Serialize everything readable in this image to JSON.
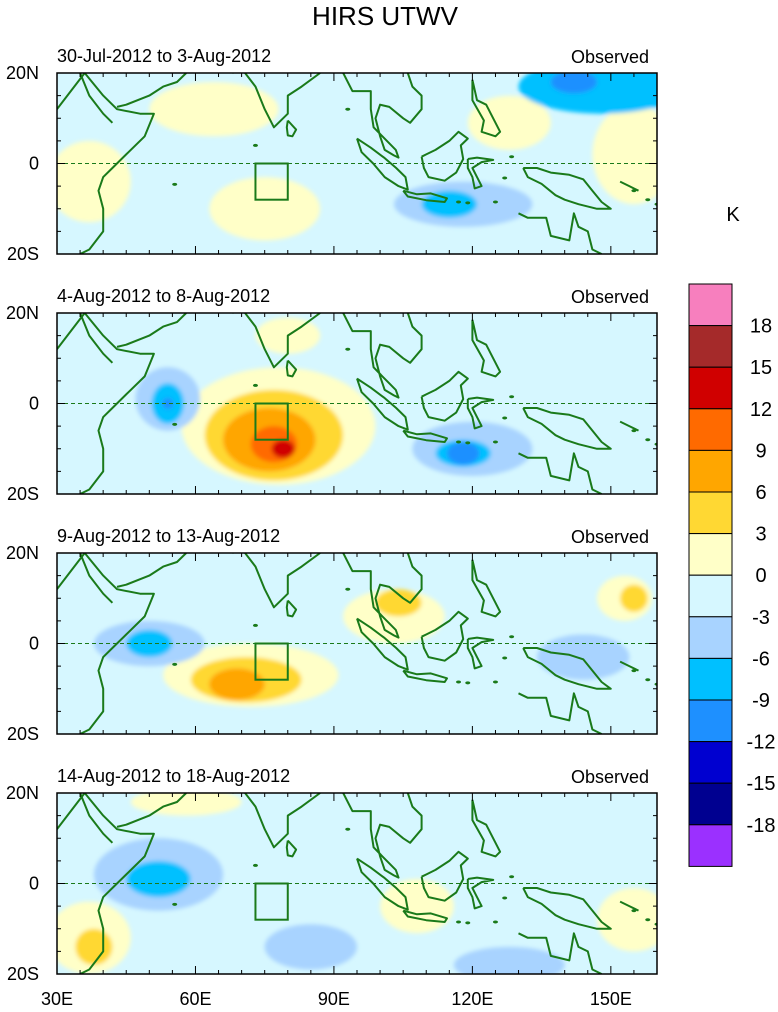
{
  "chart_data": {
    "type": "heatmap",
    "title": "HIRS UTWV",
    "units": "K",
    "x_ticks": [
      "30E",
      "60E",
      "90E",
      "120E",
      "150E"
    ],
    "x_tick_values": [
      30,
      60,
      90,
      120,
      150
    ],
    "xlim": [
      30,
      160
    ],
    "y_ticks": [
      "20N",
      "0",
      "20S"
    ],
    "y_tick_values": [
      20,
      0,
      -20
    ],
    "ylim": [
      -20,
      20
    ],
    "colorbar": {
      "labels": [
        "18",
        "15",
        "12",
        "9",
        "6",
        "3",
        "0",
        "-3",
        "-6",
        "-9",
        "-12",
        "-15",
        "-18"
      ],
      "colors": [
        "#f77fbe",
        "#a52a2a",
        "#d00000",
        "#ff6a00",
        "#ffa600",
        "#ffd833",
        "#ffffc8",
        "#d6f7ff",
        "#a8d3ff",
        "#00c0ff",
        "#1e90ff",
        "#0000d0",
        "#000090",
        "#9b30ff"
      ]
    },
    "box_region": {
      "lon": [
        73,
        80
      ],
      "lat": [
        -8,
        0
      ]
    },
    "panels": [
      {
        "period": "30-Jul-2012 to 3-Aug-2012",
        "label": "Observed",
        "features": [
          {
            "lon": 37,
            "lat": -4,
            "rx": 9,
            "ry": 9,
            "value": 3
          },
          {
            "lon": 75,
            "lat": -10,
            "rx": 12,
            "ry": 7,
            "value": 3
          },
          {
            "lon": 64,
            "lat": 12,
            "rx": 14,
            "ry": 6,
            "value": 3
          },
          {
            "lon": 155,
            "lat": 2,
            "rx": 9,
            "ry": 11,
            "value": 3
          },
          {
            "lon": 128,
            "lat": 9,
            "rx": 9,
            "ry": 6,
            "value": 3
          },
          {
            "lon": 118,
            "lat": -9,
            "rx": 15,
            "ry": 5,
            "value": -3
          },
          {
            "lon": 148,
            "lat": 17,
            "rx": 18,
            "ry": 6,
            "value": -6
          },
          {
            "lon": 142,
            "lat": 18,
            "rx": 5,
            "ry": 2.5,
            "value": -9
          },
          {
            "lon": 115,
            "lat": -9,
            "rx": 6,
            "ry": 3,
            "value": -6
          }
        ]
      },
      {
        "period": "4-Aug-2012 to 8-Aug-2012",
        "label": "Observed",
        "features": [
          {
            "lon": 78,
            "lat": -5,
            "rx": 21,
            "ry": 13,
            "value": 3
          },
          {
            "lon": 77,
            "lat": -7,
            "rx": 15,
            "ry": 10,
            "value": 6
          },
          {
            "lon": 76,
            "lat": -8,
            "rx": 10,
            "ry": 7,
            "value": 9
          },
          {
            "lon": 77,
            "lat": -9,
            "rx": 5,
            "ry": 4,
            "value": 12
          },
          {
            "lon": 79,
            "lat": -10,
            "rx": 2.5,
            "ry": 2,
            "value": 15
          },
          {
            "lon": 80,
            "lat": 15,
            "rx": 7,
            "ry": 4,
            "value": 3
          },
          {
            "lon": 54,
            "lat": 1,
            "rx": 7,
            "ry": 7,
            "value": -3
          },
          {
            "lon": 54,
            "lat": 0,
            "rx": 3.5,
            "ry": 4.5,
            "value": -6
          },
          {
            "lon": 54,
            "lat": 0,
            "rx": 1.2,
            "ry": 1.2,
            "value": -9
          },
          {
            "lon": 120,
            "lat": -10,
            "rx": 13,
            "ry": 6,
            "value": -3
          },
          {
            "lon": 118,
            "lat": -11,
            "rx": 6,
            "ry": 3,
            "value": -6
          },
          {
            "lon": 118,
            "lat": -11,
            "rx": 3.5,
            "ry": 2.5,
            "value": -9
          }
        ]
      },
      {
        "period": "9-Aug-2012 to 13-Aug-2012",
        "label": "Observed",
        "features": [
          {
            "lon": 72,
            "lat": -7,
            "rx": 19,
            "ry": 7,
            "value": 3
          },
          {
            "lon": 71,
            "lat": -8,
            "rx": 12,
            "ry": 5,
            "value": 6
          },
          {
            "lon": 69,
            "lat": -9,
            "rx": 6,
            "ry": 3.5,
            "value": 9
          },
          {
            "lon": 103,
            "lat": 6,
            "rx": 11,
            "ry": 6,
            "value": 3
          },
          {
            "lon": 104,
            "lat": 9,
            "rx": 5,
            "ry": 3,
            "value": 6
          },
          {
            "lon": 153,
            "lat": 10,
            "rx": 6,
            "ry": 5,
            "value": 3
          },
          {
            "lon": 155,
            "lat": 10,
            "rx": 3,
            "ry": 3,
            "value": 6
          },
          {
            "lon": 50,
            "lat": 0,
            "rx": 12,
            "ry": 5,
            "value": -3
          },
          {
            "lon": 50,
            "lat": 0,
            "rx": 5,
            "ry": 3,
            "value": -6
          },
          {
            "lon": 144,
            "lat": -3,
            "rx": 10,
            "ry": 5,
            "value": -3
          }
        ]
      },
      {
        "period": "14-Aug-2012 to 18-Aug-2012",
        "label": "Observed",
        "features": [
          {
            "lon": 52,
            "lat": 2,
            "rx": 14,
            "ry": 8,
            "value": -3
          },
          {
            "lon": 52,
            "lat": 1,
            "rx": 7,
            "ry": 4,
            "value": -6
          },
          {
            "lon": 37,
            "lat": -12,
            "rx": 9,
            "ry": 8,
            "value": 3
          },
          {
            "lon": 38,
            "lat": -14,
            "rx": 4,
            "ry": 4,
            "value": 6
          },
          {
            "lon": 58,
            "lat": 18,
            "rx": 12,
            "ry": 3,
            "value": 3
          },
          {
            "lon": 108,
            "lat": -5,
            "rx": 8,
            "ry": 6,
            "value": 3
          },
          {
            "lon": 155,
            "lat": -8,
            "rx": 8,
            "ry": 7,
            "value": 3
          },
          {
            "lon": 128,
            "lat": -18,
            "rx": 12,
            "ry": 4,
            "value": -3
          },
          {
            "lon": 85,
            "lat": -14,
            "rx": 10,
            "ry": 5,
            "value": -3
          }
        ]
      }
    ]
  }
}
